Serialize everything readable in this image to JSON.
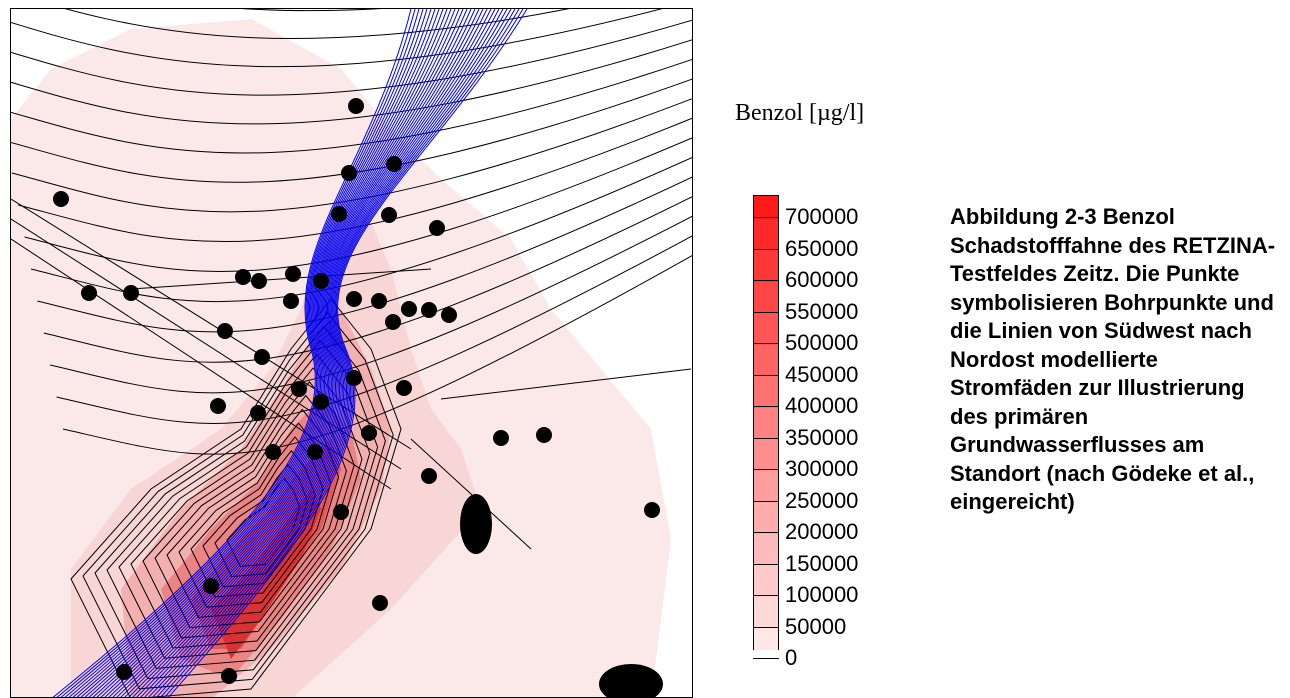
{
  "legend": {
    "title": "Benzol [µg/l]",
    "unit_color_max": "#ff1a1a",
    "unit_color_min": "#fde7e7",
    "levels": [
      "700000",
      "650000",
      "600000",
      "550000",
      "500000",
      "450000",
      "400000",
      "350000",
      "300000",
      "250000",
      "200000",
      "150000",
      "100000",
      "50000",
      "0"
    ]
  },
  "caption": "Abbildung 2-3 Benzol Schadstofffahne des RETZINA-Testfeldes Zeitz. Die Punkte symbolisieren Bohrpunkte und die Linien von Südwest nach Nordost modellierte Stromfäden zur Illustrierung des primären Grundwasserflusses am Standort (nach Gödeke et al., eingereicht)",
  "map": {
    "plume_color": "#e52a2a",
    "streamline_color": "#0000ee",
    "contour_color": "#000000",
    "borehole_color": "#000000"
  }
}
